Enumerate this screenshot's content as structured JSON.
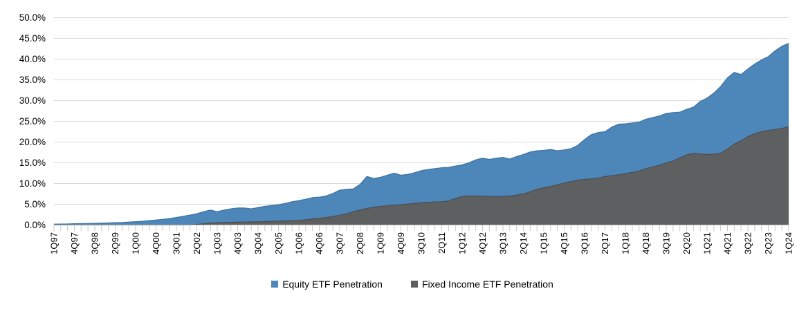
{
  "chart_data": {
    "type": "area",
    "stacked": false,
    "title": "",
    "background": "#ffffff",
    "gridline_color": "#d9d9d9",
    "axis_color": "#bfbfbf",
    "tick_color": "#c9c9c9",
    "text_color": "#000000",
    "grid": true,
    "legend_position": "bottom",
    "y_axis": {
      "min": 0,
      "max": 50,
      "step": 5,
      "tick_labels": [
        "0.0%",
        "5.0%",
        "10.0%",
        "15.0%",
        "20.0%",
        "25.0%",
        "30.0%",
        "35.0%",
        "40.0%",
        "45.0%",
        "50.0%"
      ]
    },
    "x_axis": {
      "label_every_n_points": 3,
      "tick_labels": [
        "1Q97",
        "4Q97",
        "3Q98",
        "2Q99",
        "1Q00",
        "4Q00",
        "3Q01",
        "2Q02",
        "1Q03",
        "4Q03",
        "3Q04",
        "2Q05",
        "1Q06",
        "4Q06",
        "3Q07",
        "2Q08",
        "1Q09",
        "4Q09",
        "3Q10",
        "2Q11",
        "1Q12",
        "4Q12",
        "3Q13",
        "2Q14",
        "1Q15",
        "4Q15",
        "3Q16",
        "2Q17",
        "1Q18",
        "4Q18",
        "3Q19",
        "2Q20",
        "1Q21",
        "4Q21",
        "3Q22",
        "2Q23",
        "1Q24"
      ]
    },
    "series": [
      {
        "name": "Equity ETF Penetration",
        "color": "#4d86b8",
        "edge_color": "#3d74a5",
        "values": [
          0.2,
          0.22,
          0.25,
          0.3,
          0.33,
          0.36,
          0.4,
          0.45,
          0.5,
          0.55,
          0.6,
          0.7,
          0.8,
          0.9,
          1.05,
          1.2,
          1.35,
          1.55,
          1.8,
          2.1,
          2.4,
          2.7,
          3.2,
          3.6,
          3.2,
          3.6,
          3.9,
          4.1,
          4.1,
          3.9,
          4.2,
          4.5,
          4.7,
          4.9,
          5.2,
          5.6,
          5.9,
          6.2,
          6.6,
          6.7,
          7.0,
          7.6,
          8.4,
          8.6,
          8.7,
          9.8,
          11.7,
          11.2,
          11.5,
          12.0,
          12.5,
          12.0,
          12.2,
          12.6,
          13.1,
          13.4,
          13.6,
          13.8,
          13.9,
          14.2,
          14.5,
          15.0,
          15.7,
          16.1,
          15.8,
          16.1,
          16.3,
          15.9,
          16.5,
          17.0,
          17.6,
          17.9,
          18.0,
          18.2,
          17.9,
          18.1,
          18.4,
          19.2,
          20.6,
          21.8,
          22.3,
          22.5,
          23.6,
          24.3,
          24.4,
          24.6,
          24.8,
          25.5,
          25.9,
          26.3,
          26.9,
          27.1,
          27.2,
          27.9,
          28.4,
          29.8,
          30.6,
          31.8,
          33.4,
          35.5,
          36.8,
          36.3,
          37.6,
          38.8,
          39.8,
          40.6,
          42.0,
          43.1,
          43.8
        ]
      },
      {
        "name": "Fixed Income ETF Penetration",
        "color": "#5e5f61",
        "edge_color": "#4e4f52",
        "values": [
          0,
          0,
          0,
          0,
          0,
          0,
          0,
          0,
          0,
          0,
          0,
          0,
          0,
          0,
          0,
          0,
          0,
          0,
          0,
          0,
          0,
          0.15,
          0.3,
          0.45,
          0.55,
          0.6,
          0.65,
          0.7,
          0.72,
          0.75,
          0.78,
          0.82,
          0.9,
          0.95,
          1.0,
          1.05,
          1.1,
          1.25,
          1.45,
          1.6,
          1.8,
          2.05,
          2.35,
          2.7,
          3.2,
          3.6,
          4.0,
          4.3,
          4.5,
          4.65,
          4.8,
          4.9,
          5.05,
          5.2,
          5.4,
          5.45,
          5.55,
          5.6,
          5.8,
          6.4,
          6.9,
          7.0,
          7.0,
          6.95,
          6.9,
          6.85,
          6.9,
          7.0,
          7.2,
          7.5,
          8.0,
          8.6,
          9.0,
          9.3,
          9.7,
          10.1,
          10.5,
          10.8,
          11.0,
          11.1,
          11.3,
          11.7,
          11.9,
          12.1,
          12.4,
          12.7,
          13.0,
          13.6,
          14.0,
          14.4,
          15.0,
          15.4,
          16.2,
          16.9,
          17.3,
          17.1,
          17.0,
          17.1,
          17.3,
          18.3,
          19.5,
          20.3,
          21.3,
          22.0,
          22.5,
          22.8,
          23.0,
          23.3,
          23.7
        ]
      }
    ]
  }
}
